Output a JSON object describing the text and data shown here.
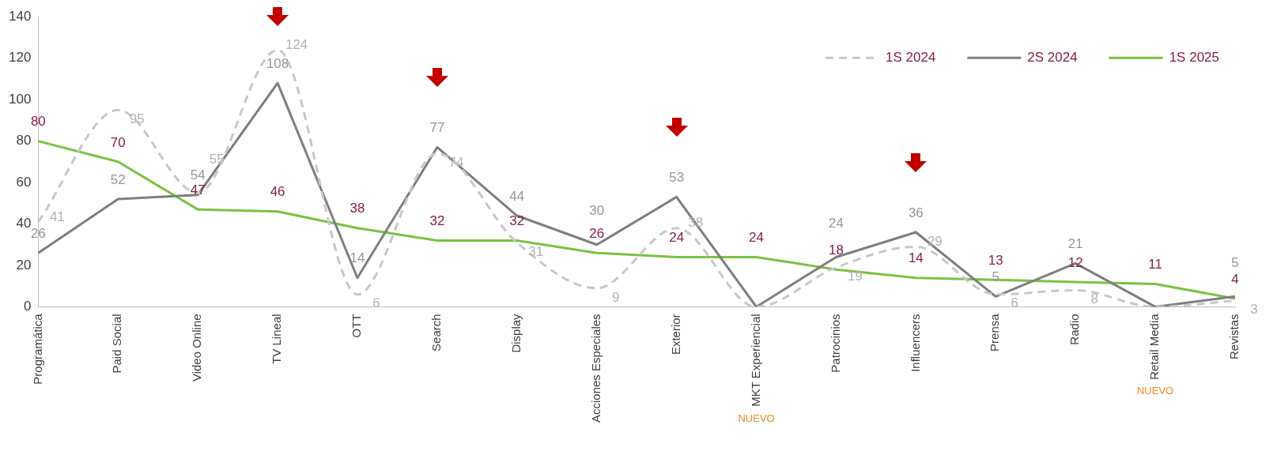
{
  "chart_data": {
    "type": "line",
    "categories": [
      "Programática",
      "Paid Social",
      "Video Online",
      "TV Lineal",
      "OTT",
      "Search",
      "Display",
      "Acciones Especiales",
      "Exterior",
      "MKT Experiencial",
      "Patrocinios",
      "Influencers",
      "Prensa",
      "Radio",
      "Retail Media",
      "Revistas"
    ],
    "series": [
      {
        "name": "1S 2024",
        "color": "#c8c8c8",
        "line_style": "dashed",
        "values": [
          41,
          95,
          55,
          124,
          6,
          74,
          31,
          9,
          38,
          0,
          19,
          29,
          6,
          8,
          0,
          3
        ],
        "value_labels": [
          "41",
          "95",
          "55",
          "124",
          "6",
          "74",
          "31",
          "9",
          "38",
          null,
          "19",
          "29",
          "6",
          "8",
          null,
          "3"
        ]
      },
      {
        "name": "2S 2024",
        "color": "#7f7f7f",
        "line_style": "solid",
        "values": [
          26,
          52,
          54,
          108,
          14,
          77,
          44,
          30,
          53,
          0,
          24,
          36,
          5,
          21,
          0,
          5
        ],
        "value_labels": [
          "26",
          "52",
          "54",
          "108",
          "14",
          "77",
          "44",
          "30",
          "53",
          null,
          "24",
          "36",
          "5",
          "21",
          null,
          "5"
        ]
      },
      {
        "name": "1S 2025",
        "color": "#7dc142",
        "line_style": "solid",
        "values": [
          80,
          70,
          47,
          46,
          38,
          32,
          32,
          26,
          24,
          24,
          18,
          14,
          13,
          12,
          11,
          4
        ],
        "value_labels": [
          "80",
          "70",
          "47",
          "46",
          "38",
          "32",
          "32",
          "26",
          "24",
          "24",
          "18",
          "14",
          "13",
          "12",
          "11",
          "4"
        ]
      }
    ],
    "ylim": [
      0,
      140
    ],
    "yticks": [
      0,
      20,
      40,
      60,
      80,
      100,
      120,
      140
    ],
    "grid": false,
    "legend": "top right",
    "marker": "none",
    "annotations": [
      "NUEVO",
      "NUEVO"
    ]
  }
}
